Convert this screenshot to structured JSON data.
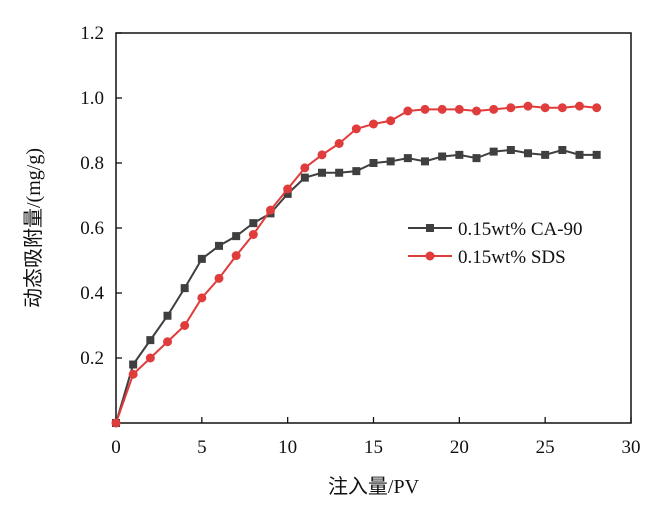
{
  "chart_data": {
    "type": "line",
    "xlabel": "注入量/PV",
    "ylabel": "动态吸附量/(mg/g)",
    "xlim": [
      0,
      30
    ],
    "ylim": [
      0,
      1.2
    ],
    "x_ticks": [
      0,
      5,
      10,
      15,
      20,
      25,
      30
    ],
    "x_tick_labels": [
      "0",
      "5",
      "10",
      "15",
      "20",
      "25",
      "30"
    ],
    "y_ticks": [
      0.2,
      0.4,
      0.6,
      0.8,
      1.0,
      1.2
    ],
    "y_tick_labels": [
      "0.2",
      "0.4",
      "0.6",
      "0.8",
      "1.0",
      "1.2"
    ],
    "grid": false,
    "legend_position": "right",
    "x": [
      0,
      1,
      2,
      3,
      4,
      5,
      6,
      7,
      8,
      9,
      10,
      11,
      12,
      13,
      14,
      15,
      16,
      17,
      18,
      19,
      20,
      21,
      22,
      23,
      24,
      25,
      26,
      27,
      28
    ],
    "series": [
      {
        "name": "0.15wt% CA-90",
        "color": "#3f3f3f",
        "marker": "square",
        "values": [
          0.0,
          0.18,
          0.255,
          0.33,
          0.415,
          0.505,
          0.545,
          0.575,
          0.615,
          0.645,
          0.705,
          0.755,
          0.77,
          0.77,
          0.775,
          0.8,
          0.805,
          0.815,
          0.805,
          0.82,
          0.825,
          0.815,
          0.835,
          0.84,
          0.83,
          0.825,
          0.84,
          0.825,
          0.825
        ]
      },
      {
        "name": "0.15wt% SDS",
        "color": "#e03c3c",
        "marker": "circle",
        "values": [
          0.0,
          0.15,
          0.2,
          0.25,
          0.3,
          0.385,
          0.445,
          0.515,
          0.58,
          0.655,
          0.72,
          0.785,
          0.825,
          0.86,
          0.905,
          0.92,
          0.93,
          0.96,
          0.965,
          0.965,
          0.965,
          0.96,
          0.965,
          0.97,
          0.975,
          0.97,
          0.97,
          0.975,
          0.97
        ]
      }
    ]
  }
}
